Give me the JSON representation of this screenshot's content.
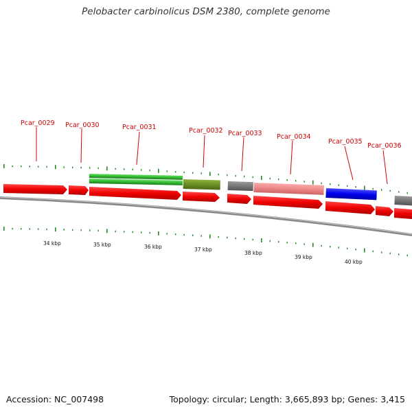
{
  "title": "Pelobacter carbinolicus DSM 2380, complete genome",
  "footer": {
    "accession": "Accession: NC_007498",
    "summary": "Topology: circular; Length: 3,665,893 bp; Genes: 3,415"
  },
  "axis": {
    "unit": "kbp",
    "labels": [
      "34 kbp",
      "35 kbp",
      "36 kbp",
      "37 kbp",
      "38 kbp",
      "39 kbp",
      "40 kbp"
    ]
  },
  "genes": [
    {
      "locus": "Pcar_0029",
      "labeled": true
    },
    {
      "locus": "Pcar_0030",
      "labeled": true
    },
    {
      "locus": "Pcar_0031",
      "labeled": true
    },
    {
      "locus": "Pcar_0032",
      "labeled": true
    },
    {
      "locus": "Pcar_0033",
      "labeled": true
    },
    {
      "locus": "Pcar_0034",
      "labeled": true
    },
    {
      "locus": "Pcar_0035",
      "labeled": true
    },
    {
      "locus": "Pcar_0036",
      "labeled": true
    }
  ],
  "colors": {
    "cds": "#ee0000",
    "green_feature": "#33bb33",
    "olive_feature": "#6b8e23",
    "grey_feature": "#777777",
    "pink_feature": "#ee8888",
    "blue_feature": "#0000ee",
    "tick": "#228b22",
    "backbone": "#888888",
    "label": "#cc0000"
  }
}
